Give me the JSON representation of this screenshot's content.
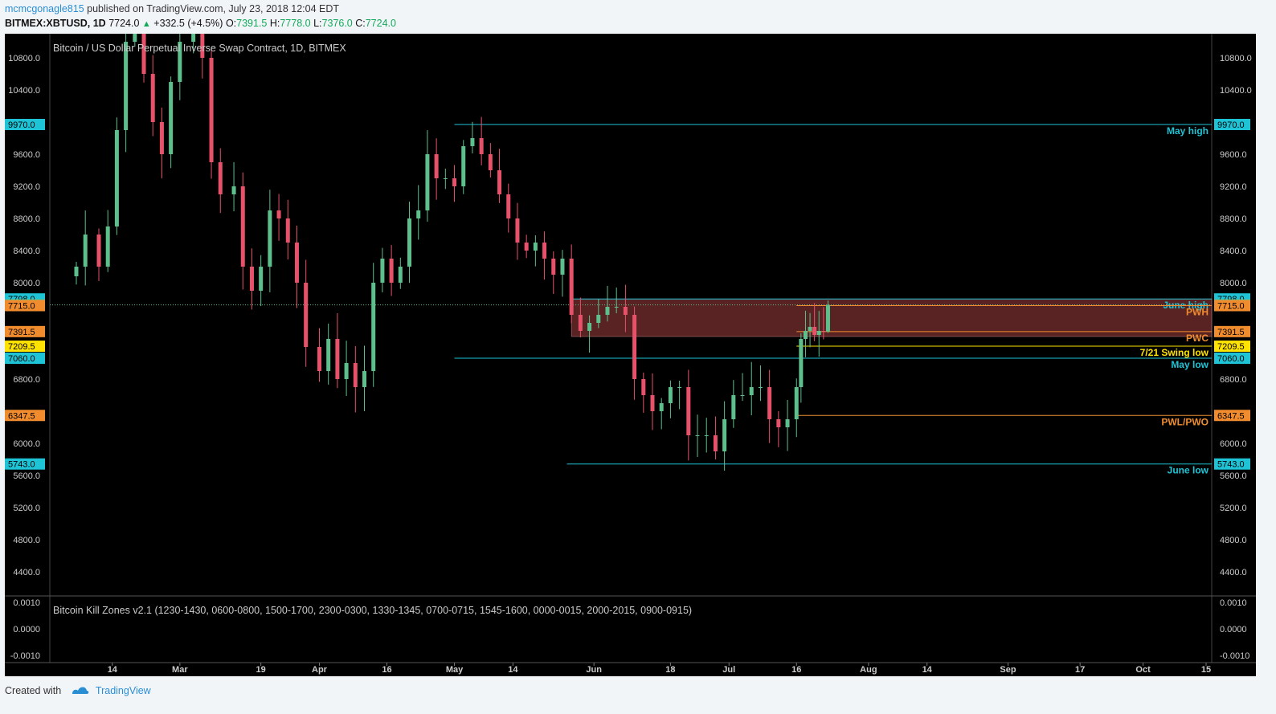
{
  "header": {
    "author": "mcmcgonagle815",
    "published": "published on TradingView.com, July 23, 2018 12:04 EDT",
    "symbol": "BITMEX:XBTUSD, 1D",
    "last": "7724.0",
    "change_arrow": "▲",
    "change": "+332.5 (+4.5%)",
    "o_label": "O:",
    "o_value": "7391.5",
    "h_label": "H:",
    "h_value": "7778.0",
    "l_label": "L:",
    "l_value": "7376.0",
    "c_label": "C:",
    "c_value": "7724.0"
  },
  "footer": {
    "created_with": "Created with",
    "brand": "TradingView"
  },
  "colors": {
    "up": "#5dbf8c",
    "down": "#e8516a",
    "cyan": "#1ec4d6",
    "orange": "#f08c2e",
    "yellow": "#ffe300",
    "zone_fill": "#6a2a2a",
    "text": "#cccccc"
  },
  "chart_data": {
    "type": "candlestick",
    "title": "Bitcoin / US Dollar Perpetual Inverse Swap Contract, 1D, BITMEX",
    "date_range": [
      "2018-02-06",
      "2018-07-23"
    ],
    "y_ticks": [
      "10800.0",
      "10400.0",
      "9600.0",
      "9200.0",
      "8800.0",
      "8400.0",
      "8000.0",
      "6800.0",
      "6000.0",
      "5600.0",
      "5200.0",
      "4800.0",
      "4400.0"
    ],
    "x_ticks": [
      {
        "date": "2018-02-14",
        "label": "14"
      },
      {
        "date": "2018-03-01",
        "label": "Mar"
      },
      {
        "date": "2018-03-19",
        "label": "19"
      },
      {
        "date": "2018-04-01",
        "label": "Apr"
      },
      {
        "date": "2018-04-16",
        "label": "16"
      },
      {
        "date": "2018-05-01",
        "label": "May"
      },
      {
        "date": "2018-05-14",
        "label": "14"
      },
      {
        "date": "2018-06-01",
        "label": "Jun"
      },
      {
        "date": "2018-06-18",
        "label": "18"
      },
      {
        "date": "2018-07-01",
        "label": "Jul"
      },
      {
        "date": "2018-07-16",
        "label": "16"
      },
      {
        "date": "2018-08-01",
        "label": "Aug"
      },
      {
        "date": "2018-08-14",
        "label": "14"
      },
      {
        "date": "2018-09-01",
        "label": "Sep"
      },
      {
        "date": "2018-09-17",
        "label": "17"
      },
      {
        "date": "2018-10-01",
        "label": "Oct"
      },
      {
        "date": "2018-10-15",
        "label": "15"
      }
    ],
    "close_series": [
      {
        "date": "2018-02-06",
        "close": 8200
      },
      {
        "date": "2018-02-08",
        "close": 8600
      },
      {
        "date": "2018-02-11",
        "close": 8200
      },
      {
        "date": "2018-02-13",
        "close": 8700
      },
      {
        "date": "2018-02-15",
        "close": 9900
      },
      {
        "date": "2018-02-17",
        "close": 11000
      },
      {
        "date": "2018-02-19",
        "close": 11200
      },
      {
        "date": "2018-02-21",
        "close": 10600
      },
      {
        "date": "2018-02-23",
        "close": 10000
      },
      {
        "date": "2018-02-25",
        "close": 9600
      },
      {
        "date": "2018-02-27",
        "close": 10500
      },
      {
        "date": "2018-03-01",
        "close": 11000
      },
      {
        "date": "2018-03-04",
        "close": 11400
      },
      {
        "date": "2018-03-06",
        "close": 10800
      },
      {
        "date": "2018-03-08",
        "close": 9500
      },
      {
        "date": "2018-03-10",
        "close": 9100
      },
      {
        "date": "2018-03-13",
        "close": 9200
      },
      {
        "date": "2018-03-15",
        "close": 8200
      },
      {
        "date": "2018-03-17",
        "close": 7900
      },
      {
        "date": "2018-03-19",
        "close": 8200
      },
      {
        "date": "2018-03-21",
        "close": 8900
      },
      {
        "date": "2018-03-23",
        "close": 8800
      },
      {
        "date": "2018-03-25",
        "close": 8500
      },
      {
        "date": "2018-03-27",
        "close": 8000
      },
      {
        "date": "2018-03-29",
        "close": 7200
      },
      {
        "date": "2018-04-01",
        "close": 6900
      },
      {
        "date": "2018-04-03",
        "close": 7300
      },
      {
        "date": "2018-04-05",
        "close": 6800
      },
      {
        "date": "2018-04-07",
        "close": 7000
      },
      {
        "date": "2018-04-09",
        "close": 6700
      },
      {
        "date": "2018-04-11",
        "close": 6900
      },
      {
        "date": "2018-04-13",
        "close": 8000
      },
      {
        "date": "2018-04-15",
        "close": 8300
      },
      {
        "date": "2018-04-17",
        "close": 8000
      },
      {
        "date": "2018-04-19",
        "close": 8200
      },
      {
        "date": "2018-04-21",
        "close": 8800
      },
      {
        "date": "2018-04-23",
        "close": 8900
      },
      {
        "date": "2018-04-25",
        "close": 9600
      },
      {
        "date": "2018-04-27",
        "close": 9300
      },
      {
        "date": "2018-04-29",
        "close": 9300
      },
      {
        "date": "2018-05-01",
        "close": 9200
      },
      {
        "date": "2018-05-03",
        "close": 9700
      },
      {
        "date": "2018-05-05",
        "close": 9800
      },
      {
        "date": "2018-05-07",
        "close": 9600
      },
      {
        "date": "2018-05-09",
        "close": 9400
      },
      {
        "date": "2018-05-11",
        "close": 9100
      },
      {
        "date": "2018-05-13",
        "close": 8800
      },
      {
        "date": "2018-05-15",
        "close": 8500
      },
      {
        "date": "2018-05-17",
        "close": 8400
      },
      {
        "date": "2018-05-19",
        "close": 8500
      },
      {
        "date": "2018-05-21",
        "close": 8300
      },
      {
        "date": "2018-05-23",
        "close": 8100
      },
      {
        "date": "2018-05-25",
        "close": 8300
      },
      {
        "date": "2018-05-27",
        "close": 7600
      },
      {
        "date": "2018-05-29",
        "close": 7400
      },
      {
        "date": "2018-05-31",
        "close": 7500
      },
      {
        "date": "2018-06-02",
        "close": 7600
      },
      {
        "date": "2018-06-04",
        "close": 7700
      },
      {
        "date": "2018-06-06",
        "close": 7700
      },
      {
        "date": "2018-06-08",
        "close": 7600
      },
      {
        "date": "2018-06-10",
        "close": 6800
      },
      {
        "date": "2018-06-12",
        "close": 6600
      },
      {
        "date": "2018-06-14",
        "close": 6400
      },
      {
        "date": "2018-06-16",
        "close": 6500
      },
      {
        "date": "2018-06-18",
        "close": 6700
      },
      {
        "date": "2018-06-20",
        "close": 6700
      },
      {
        "date": "2018-06-22",
        "close": 6100
      },
      {
        "date": "2018-06-24",
        "close": 6100
      },
      {
        "date": "2018-06-26",
        "close": 6100
      },
      {
        "date": "2018-06-28",
        "close": 5900
      },
      {
        "date": "2018-06-30",
        "close": 6300
      },
      {
        "date": "2018-07-02",
        "close": 6600
      },
      {
        "date": "2018-07-04",
        "close": 6600
      },
      {
        "date": "2018-07-06",
        "close": 6700
      },
      {
        "date": "2018-07-08",
        "close": 6700
      },
      {
        "date": "2018-07-10",
        "close": 6300
      },
      {
        "date": "2018-07-12",
        "close": 6200
      },
      {
        "date": "2018-07-14",
        "close": 6300
      },
      {
        "date": "2018-07-16",
        "close": 6700
      },
      {
        "date": "2018-07-17",
        "close": 7300
      },
      {
        "date": "2018-07-18",
        "close": 7400
      },
      {
        "date": "2018-07-19",
        "close": 7450
      },
      {
        "date": "2018-07-20",
        "close": 7350
      },
      {
        "date": "2018-07-21",
        "close": 7400
      },
      {
        "date": "2018-07-22",
        "close": 7391.5
      },
      {
        "date": "2018-07-23",
        "open": 7391.5,
        "high": 7778.0,
        "low": 7376.0,
        "close": 7724.0
      }
    ],
    "levels": [
      {
        "name": "May high",
        "value": 9970.0,
        "label": "9970.0",
        "color": "cyan",
        "from": "2018-05-01"
      },
      {
        "name": "June high",
        "value": 7798.0,
        "label": "7798.0",
        "color": "cyan",
        "from": "2018-05-27"
      },
      {
        "name": "last price",
        "value": 7724.0,
        "label": "7724.0",
        "color": "up",
        "style": "dotted"
      },
      {
        "name": "PWH",
        "value": 7715.0,
        "label": "7715.0",
        "color": "orange",
        "from": "2018-07-16"
      },
      {
        "name": "PWC",
        "value": 7391.5,
        "label": "7391.5",
        "color": "orange",
        "from": "2018-07-16"
      },
      {
        "name": "7/21 Swing low",
        "value": 7209.5,
        "label": "7209.5",
        "color": "yellow",
        "from": "2018-07-16"
      },
      {
        "name": "May low",
        "value": 7060.0,
        "label": "7060.0",
        "color": "cyan",
        "from": "2018-05-01"
      },
      {
        "name": "PWL/PWO",
        "value": 6347.5,
        "label": "6347.5",
        "color": "orange",
        "from": "2018-07-16"
      },
      {
        "name": "June low",
        "value": 5743.0,
        "label": "5743.0",
        "color": "cyan",
        "from": "2018-05-26"
      }
    ],
    "zone": {
      "from": "2018-05-27",
      "to_right_edge": true,
      "high": 7798.0,
      "low": 7330.0
    },
    "indicator": {
      "title": "Bitcoin Kill Zones v2.1 (1230-1430, 0600-0800, 1500-1700, 2300-0300, 1330-1345, 0700-0715, 1545-1600, 0000-0015, 2000-2015, 0900-0915)",
      "y_ticks": [
        "0.0010",
        "0.0000",
        "-0.0010"
      ]
    }
  }
}
